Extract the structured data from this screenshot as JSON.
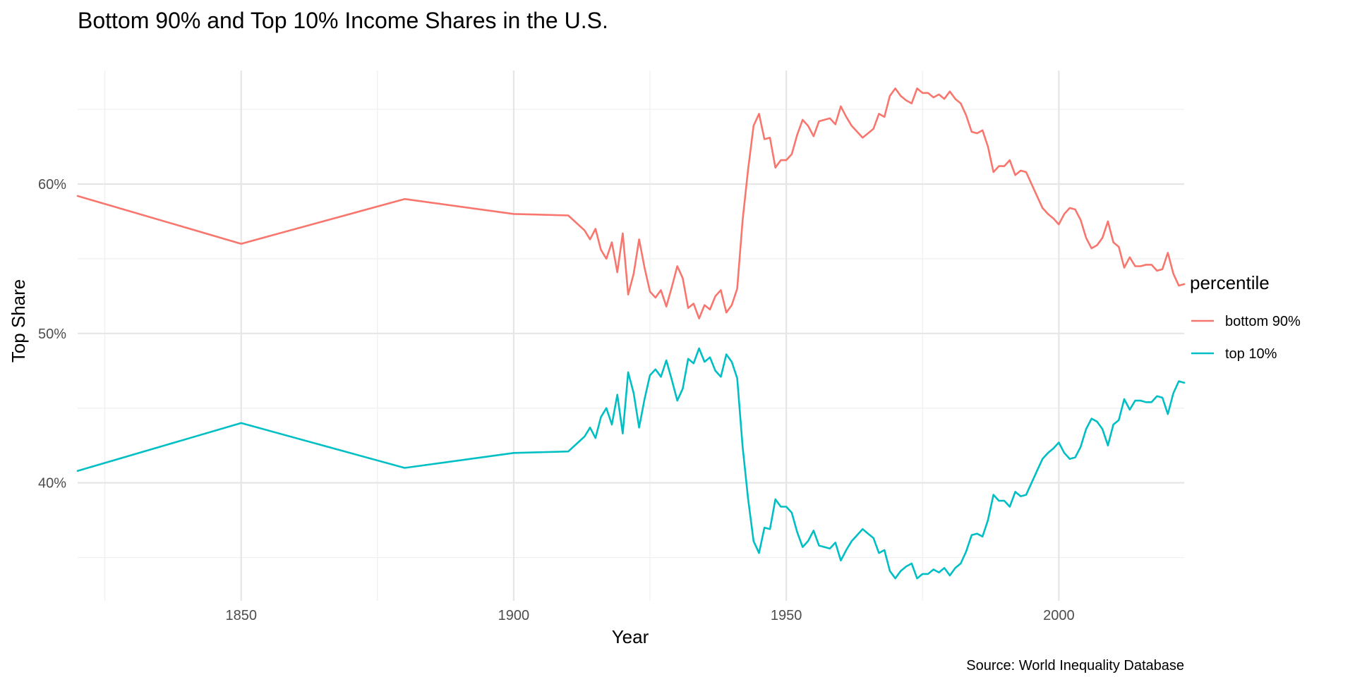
{
  "chart_data": {
    "type": "line",
    "title": "Bottom 90% and Top 10% Income Shares in the U.S.",
    "xlabel": "Year",
    "ylabel": "Top Share",
    "caption": "Source: World Inequality Database",
    "legend_title": "percentile",
    "legend_position": "right",
    "grid": true,
    "xlim": [
      1820,
      2023
    ],
    "ylim": [
      32.1,
      67.6
    ],
    "x_ticks": [
      1850,
      1900,
      1950,
      2000
    ],
    "x_tick_labels": [
      "1850",
      "1900",
      "1950",
      "2000"
    ],
    "x_minor_ticks": [
      1825,
      1875,
      1925,
      1975,
      2025
    ],
    "y_ticks": [
      40,
      50,
      60
    ],
    "y_tick_labels": [
      "40%",
      "50%",
      "60%"
    ],
    "y_minor_ticks": [
      35,
      45,
      55,
      65
    ],
    "x": [
      1820,
      1850,
      1880,
      1900,
      1910,
      1913,
      1914,
      1915,
      1916,
      1917,
      1918,
      1919,
      1920,
      1921,
      1922,
      1923,
      1924,
      1925,
      1926,
      1927,
      1928,
      1929,
      1930,
      1931,
      1932,
      1933,
      1934,
      1935,
      1936,
      1937,
      1938,
      1939,
      1940,
      1941,
      1942,
      1943,
      1944,
      1945,
      1946,
      1947,
      1948,
      1949,
      1950,
      1951,
      1952,
      1953,
      1954,
      1955,
      1956,
      1957,
      1958,
      1959,
      1960,
      1961,
      1962,
      1963,
      1964,
      1965,
      1966,
      1967,
      1968,
      1969,
      1970,
      1971,
      1972,
      1973,
      1974,
      1975,
      1976,
      1977,
      1978,
      1979,
      1980,
      1981,
      1982,
      1983,
      1984,
      1985,
      1986,
      1987,
      1988,
      1989,
      1990,
      1991,
      1992,
      1993,
      1994,
      1995,
      1996,
      1997,
      1998,
      1999,
      2000,
      2001,
      2002,
      2003,
      2004,
      2005,
      2006,
      2007,
      2008,
      2009,
      2010,
      2011,
      2012,
      2013,
      2014,
      2015,
      2016,
      2017,
      2018,
      2019,
      2020,
      2021,
      2022,
      2023
    ],
    "series": [
      {
        "name": "bottom 90%",
        "color": "#F8766D",
        "values": [
          59.2,
          56.0,
          59.0,
          58.0,
          57.9,
          56.9,
          56.3,
          57.0,
          55.6,
          55.0,
          56.1,
          54.1,
          56.7,
          52.6,
          54.0,
          56.3,
          54.4,
          52.8,
          52.4,
          52.9,
          51.8,
          53.1,
          54.5,
          53.7,
          51.7,
          52.0,
          51.0,
          51.9,
          51.6,
          52.5,
          52.9,
          51.4,
          51.9,
          53.0,
          57.6,
          61.0,
          63.9,
          64.7,
          63.0,
          63.1,
          61.1,
          61.6,
          61.6,
          62.0,
          63.3,
          64.3,
          63.9,
          63.2,
          64.2,
          64.3,
          64.4,
          64.0,
          65.2,
          64.5,
          63.9,
          63.5,
          63.1,
          63.4,
          63.7,
          64.7,
          64.5,
          65.9,
          66.4,
          65.9,
          65.6,
          65.4,
          66.4,
          66.1,
          66.1,
          65.8,
          66.0,
          65.7,
          66.2,
          65.7,
          65.4,
          64.6,
          63.5,
          63.4,
          63.6,
          62.5,
          60.8,
          61.2,
          61.2,
          61.6,
          60.6,
          60.9,
          60.8,
          60.0,
          59.2,
          58.4,
          58.0,
          57.7,
          57.3,
          58.0,
          58.4,
          58.3,
          57.6,
          56.4,
          55.7,
          55.9,
          56.4,
          57.5,
          56.1,
          55.8,
          54.4,
          55.1,
          54.5,
          54.5,
          54.6,
          54.6,
          54.2,
          54.3,
          55.4,
          54.0,
          53.2,
          53.3
        ]
      },
      {
        "name": "top 10%",
        "color": "#00BFC4",
        "values": [
          40.8,
          44.0,
          41.0,
          42.0,
          42.1,
          43.1,
          43.7,
          43.0,
          44.4,
          45.0,
          43.9,
          45.9,
          43.3,
          47.4,
          46.0,
          43.7,
          45.6,
          47.2,
          47.6,
          47.1,
          48.2,
          46.9,
          45.5,
          46.3,
          48.3,
          48.0,
          49.0,
          48.1,
          48.4,
          47.5,
          47.1,
          48.6,
          48.1,
          47.0,
          42.4,
          38.9,
          36.1,
          35.3,
          37.0,
          36.9,
          38.9,
          38.4,
          38.4,
          38.0,
          36.7,
          35.7,
          36.1,
          36.8,
          35.8,
          35.7,
          35.6,
          36.0,
          34.8,
          35.5,
          36.1,
          36.5,
          36.9,
          36.6,
          36.3,
          35.3,
          35.5,
          34.1,
          33.6,
          34.1,
          34.4,
          34.6,
          33.6,
          33.9,
          33.9,
          34.2,
          34.0,
          34.3,
          33.8,
          34.3,
          34.6,
          35.4,
          36.5,
          36.6,
          36.4,
          37.5,
          39.2,
          38.8,
          38.8,
          38.4,
          39.4,
          39.1,
          39.2,
          40.0,
          40.8,
          41.6,
          42.0,
          42.3,
          42.7,
          42.0,
          41.6,
          41.7,
          42.4,
          43.6,
          44.3,
          44.1,
          43.6,
          42.5,
          43.9,
          44.2,
          45.6,
          44.9,
          45.5,
          45.5,
          45.4,
          45.4,
          45.8,
          45.7,
          44.6,
          46.0,
          46.8,
          46.7
        ]
      }
    ]
  }
}
